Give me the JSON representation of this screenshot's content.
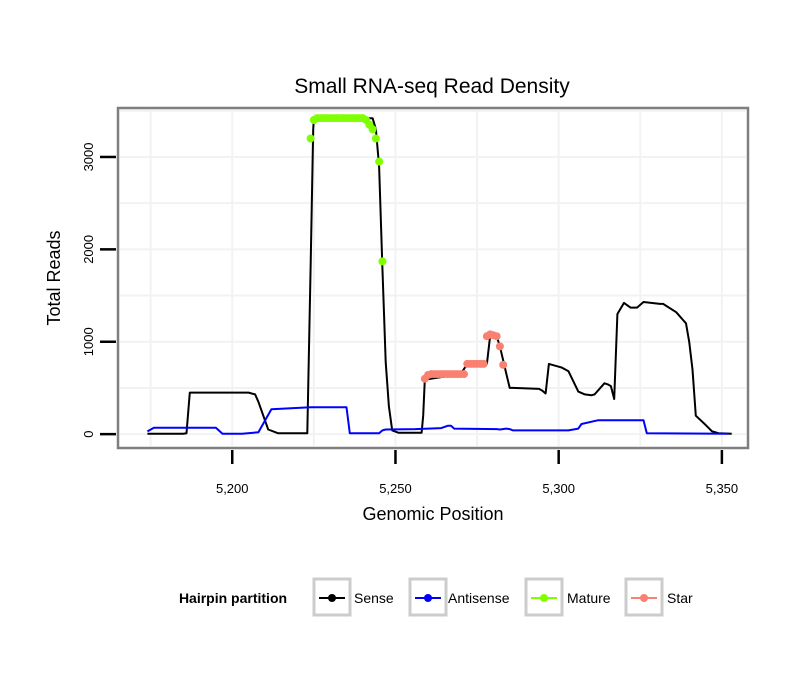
{
  "chart_data": {
    "type": "line",
    "title": "Small RNA-seq Read Density",
    "xlabel": "Genomic Position",
    "ylabel": "Total Reads",
    "xlim": [
      5165,
      5358
    ],
    "ylim": [
      -150,
      3530
    ],
    "x_ticks": [
      5200,
      5250,
      5300,
      5350
    ],
    "x_tick_labels": [
      "5,200",
      "5,250",
      "5,300",
      "5,350"
    ],
    "y_ticks": [
      0,
      1000,
      2000,
      3000
    ],
    "y_tick_labels": [
      "0",
      "1000",
      "2000",
      "3000"
    ],
    "grid": true,
    "legend": {
      "title": "Hairpin partition",
      "position": "bottom",
      "entries": [
        "Sense",
        "Antisense",
        "Mature",
        "Star"
      ]
    },
    "colors": {
      "Sense": "#000000",
      "Antisense": "#0000ff",
      "Mature": "#7fff00",
      "Star": "#fa8072"
    },
    "series": [
      {
        "name": "Sense",
        "kind": "line",
        "x": [
          5174,
          5185,
          5186,
          5187,
          5205,
          5207,
          5208,
          5211,
          5214,
          5217,
          5223,
          5224,
          5224.8,
          5225,
          5243,
          5244,
          5245,
          5246,
          5247,
          5248,
          5249,
          5251,
          5255,
          5258,
          5258.5,
          5259,
          5270,
          5272,
          5278,
          5279,
          5281,
          5282,
          5284,
          5285,
          5286,
          5294,
          5295,
          5296,
          5297,
          5300,
          5301,
          5303,
          5306,
          5308,
          5310,
          5311,
          5314,
          5315,
          5316,
          5317,
          5318,
          5320,
          5322,
          5324,
          5326,
          5331,
          5332,
          5336,
          5337,
          5338,
          5339,
          5340,
          5341,
          5342,
          5345,
          5347,
          5349,
          5353
        ],
        "y": [
          5,
          5,
          10,
          450,
          450,
          430,
          350,
          50,
          10,
          10,
          10,
          1800,
          3300,
          3420,
          3420,
          3300,
          2900,
          1800,
          780,
          300,
          40,
          15,
          15,
          15,
          200,
          590,
          650,
          760,
          760,
          1060,
          1060,
          950,
          650,
          500,
          500,
          490,
          470,
          440,
          760,
          730,
          720,
          680,
          460,
          430,
          420,
          430,
          550,
          540,
          520,
          380,
          1300,
          1420,
          1370,
          1370,
          1430,
          1410,
          1410,
          1320,
          1280,
          1240,
          1200,
          1000,
          700,
          200,
          100,
          30,
          10,
          5
        ]
      },
      {
        "name": "Antisense",
        "kind": "line",
        "x": [
          5174,
          5176,
          5195,
          5197,
          5203,
          5208,
          5212,
          5224,
          5225,
          5235,
          5236,
          5245,
          5246,
          5247,
          5256,
          5264,
          5266,
          5267,
          5268,
          5281,
          5282,
          5284,
          5285,
          5286,
          5295,
          5303,
          5306,
          5307,
          5312,
          5315,
          5326,
          5327,
          5352
        ],
        "y": [
          30,
          70,
          70,
          5,
          5,
          20,
          270,
          290,
          290,
          290,
          10,
          10,
          40,
          50,
          55,
          65,
          90,
          90,
          60,
          55,
          50,
          60,
          55,
          40,
          40,
          40,
          60,
          110,
          150,
          150,
          150,
          10,
          5
        ]
      },
      {
        "name": "Mature",
        "kind": "points",
        "x": [
          5224,
          5225,
          5226,
          5227,
          5228,
          5229,
          5230,
          5231,
          5232,
          5233,
          5234,
          5235,
          5236,
          5237,
          5238,
          5239,
          5240,
          5241,
          5242,
          5243,
          5244,
          5245,
          5246
        ],
        "y": [
          3200,
          3400,
          3420,
          3420,
          3420,
          3420,
          3420,
          3420,
          3420,
          3420,
          3420,
          3420,
          3420,
          3420,
          3420,
          3420,
          3420,
          3400,
          3350,
          3300,
          3200,
          2950,
          1870
        ]
      },
      {
        "name": "Star",
        "kind": "points",
        "x": [
          5259,
          5260,
          5261,
          5262,
          5263,
          5264,
          5265,
          5266,
          5267,
          5268,
          5269,
          5270,
          5271,
          5272,
          5273,
          5274,
          5275,
          5276,
          5277,
          5278,
          5279,
          5280,
          5281,
          5282,
          5283
        ],
        "y": [
          600,
          640,
          650,
          650,
          650,
          650,
          650,
          650,
          650,
          650,
          650,
          650,
          650,
          760,
          760,
          760,
          760,
          760,
          760,
          1060,
          1080,
          1070,
          1060,
          950,
          750
        ]
      }
    ]
  }
}
